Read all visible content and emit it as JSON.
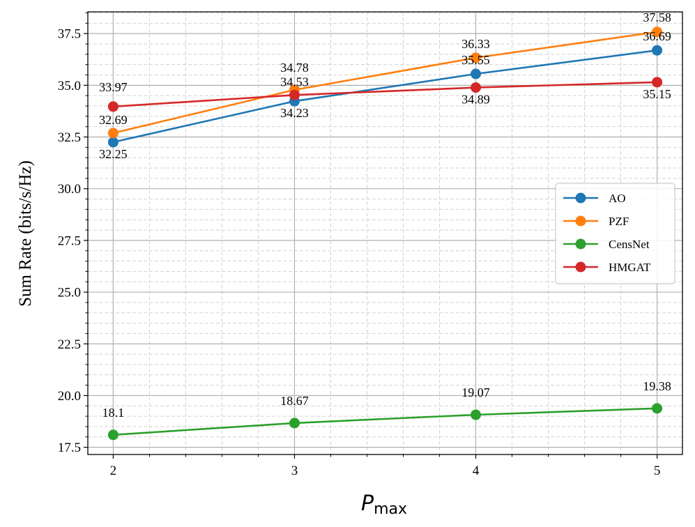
{
  "chart_data": {
    "type": "line",
    "x": [
      2,
      3,
      4,
      5
    ],
    "xticks": [
      2,
      3,
      4,
      5
    ],
    "xlim": [
      1.86,
      5.14
    ],
    "ylim": [
      17.15,
      38.55
    ],
    "yticks": [
      17.5,
      20.0,
      22.5,
      25.0,
      27.5,
      30.0,
      32.5,
      35.0,
      37.5
    ],
    "ytick_labels": [
      "17.5",
      "20.0",
      "22.5",
      "25.0",
      "27.5",
      "30.0",
      "32.5",
      "35.0",
      "37.5"
    ],
    "xlabel": "P",
    "xlabel_subscript": "max",
    "ylabel": "Sum Rate (bits/s/Hz)",
    "grid": true,
    "minor_grid": true,
    "legend_position": "center-right",
    "series": [
      {
        "name": "AO",
        "color": "#1f77b4",
        "values": [
          32.25,
          34.23,
          35.55,
          36.69
        ],
        "labels": [
          "32.25",
          "34.23",
          "35.55",
          "36.69"
        ]
      },
      {
        "name": "PZF",
        "color": "#ff7f0e",
        "values": [
          32.69,
          34.78,
          36.33,
          37.58
        ],
        "labels": [
          "32.69",
          "34.78",
          "36.33",
          "37.58"
        ]
      },
      {
        "name": "CensNet",
        "color": "#2ca02c",
        "values": [
          18.1,
          18.67,
          19.07,
          19.38
        ],
        "labels": [
          "18.1",
          "18.67",
          "19.07",
          "19.38"
        ]
      },
      {
        "name": "HMGAT",
        "color": "#d62728",
        "values": [
          33.97,
          34.53,
          34.89,
          35.15
        ],
        "labels": [
          "33.97",
          "34.53",
          "34.89",
          "35.15"
        ]
      }
    ]
  }
}
